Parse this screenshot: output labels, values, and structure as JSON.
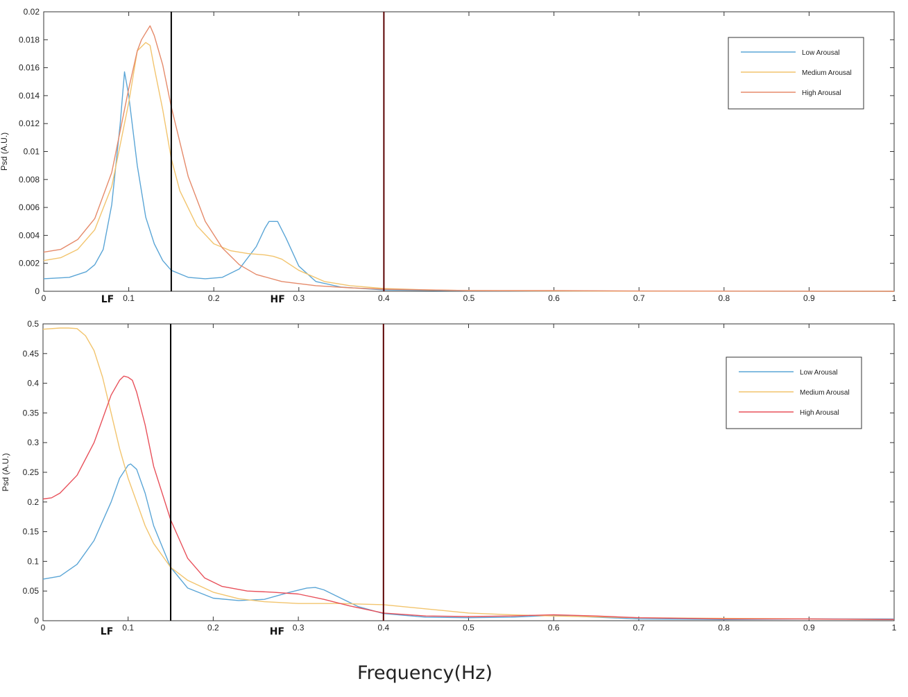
{
  "figure": {
    "xlabel": "Frequency(Hz)",
    "band_labels": {
      "lf": "LF",
      "hf": "HF"
    }
  },
  "colors": {
    "low": "#5aa5d6",
    "medium": "#f2c46d",
    "high_top": "#e58a6a",
    "high_bottom": "#e8505a",
    "lf_line": "#000000",
    "hf_line": "#5a0000"
  },
  "chart_data": [
    {
      "type": "line",
      "ylabel": "Psd (A.U.)",
      "xlim": [
        0,
        1
      ],
      "ylim": [
        0,
        0.02
      ],
      "xticks": [
        "0",
        "0.1",
        "0.2",
        "0.3",
        "0.4",
        "0.5",
        "0.6",
        "0.7",
        "0.8",
        "0.9",
        "1"
      ],
      "yticks": [
        "0",
        "0.002",
        "0.004",
        "0.006",
        "0.008",
        "0.01",
        "0.012",
        "0.014",
        "0.016",
        "0.018",
        "0.02"
      ],
      "vlines": [
        0.15,
        0.4
      ],
      "legend_position": "top-right",
      "series": [
        {
          "name": "Low Arousal",
          "color_key": "low",
          "x": [
            0,
            0.03,
            0.05,
            0.06,
            0.07,
            0.08,
            0.09,
            0.095,
            0.1,
            0.11,
            0.12,
            0.13,
            0.14,
            0.15,
            0.17,
            0.19,
            0.21,
            0.23,
            0.25,
            0.26,
            0.265,
            0.275,
            0.285,
            0.3,
            0.32,
            0.35,
            0.4,
            0.5,
            0.6,
            0.7,
            1.0
          ],
          "y": [
            0.0009,
            0.001,
            0.0014,
            0.0019,
            0.003,
            0.0062,
            0.012,
            0.0157,
            0.014,
            0.009,
            0.0053,
            0.0034,
            0.0022,
            0.0015,
            0.001,
            0.0009,
            0.001,
            0.0016,
            0.0032,
            0.0045,
            0.005,
            0.005,
            0.0038,
            0.0018,
            0.0007,
            0.0003,
            0.0001,
            3e-05,
            2e-05,
            1e-05,
            0
          ]
        },
        {
          "name": "Medium Arousal",
          "color_key": "medium",
          "x": [
            0,
            0.02,
            0.04,
            0.06,
            0.08,
            0.1,
            0.11,
            0.12,
            0.125,
            0.13,
            0.14,
            0.15,
            0.16,
            0.18,
            0.2,
            0.22,
            0.24,
            0.26,
            0.27,
            0.28,
            0.3,
            0.33,
            0.36,
            0.4,
            0.45,
            0.5,
            0.6,
            0.7,
            1.0
          ],
          "y": [
            0.0022,
            0.0024,
            0.003,
            0.0044,
            0.0075,
            0.0135,
            0.0172,
            0.0178,
            0.0176,
            0.016,
            0.013,
            0.0095,
            0.0072,
            0.0047,
            0.0034,
            0.0029,
            0.0027,
            0.0026,
            0.0025,
            0.0023,
            0.0015,
            0.0007,
            0.0004,
            0.0002,
            0.0001,
            5e-05,
            2e-05,
            1e-05,
            0
          ]
        },
        {
          "name": "High Arousal",
          "color_key": "high_top",
          "x": [
            0,
            0.02,
            0.04,
            0.06,
            0.08,
            0.1,
            0.11,
            0.115,
            0.12,
            0.125,
            0.13,
            0.14,
            0.15,
            0.17,
            0.19,
            0.21,
            0.23,
            0.25,
            0.28,
            0.32,
            0.36,
            0.4,
            0.45,
            0.5,
            0.6,
            0.7,
            1.0
          ],
          "y": [
            0.0028,
            0.003,
            0.0037,
            0.0052,
            0.0085,
            0.0145,
            0.0172,
            0.018,
            0.0185,
            0.019,
            0.0183,
            0.0162,
            0.0132,
            0.0082,
            0.005,
            0.0031,
            0.0019,
            0.0012,
            0.0007,
            0.0004,
            0.00025,
            0.00015,
            0.0001,
            5e-05,
            5e-05,
            2e-05,
            0
          ]
        }
      ],
      "legend": [
        "Low Arousal",
        "Medium Arousal",
        "High Arousal"
      ]
    },
    {
      "type": "line",
      "ylabel": "Psd (A.U.)",
      "xlim": [
        0,
        1
      ],
      "ylim": [
        0,
        0.5
      ],
      "xticks": [
        "0",
        "0.1",
        "0.2",
        "0.3",
        "0.4",
        "0.5",
        "0.6",
        "0.7",
        "0.8",
        "0.9",
        "1"
      ],
      "yticks": [
        "0",
        "0.05",
        "0.1",
        "0.15",
        "0.2",
        "0.25",
        "0.3",
        "0.35",
        "0.4",
        "0.45",
        "0.5"
      ],
      "vlines": [
        0.15,
        0.4
      ],
      "legend_position": "top-right",
      "series": [
        {
          "name": "Low Arousal",
          "color_key": "low",
          "x": [
            0,
            0.02,
            0.04,
            0.06,
            0.08,
            0.09,
            0.1,
            0.103,
            0.11,
            0.12,
            0.13,
            0.15,
            0.17,
            0.2,
            0.23,
            0.26,
            0.29,
            0.31,
            0.32,
            0.33,
            0.35,
            0.37,
            0.4,
            0.45,
            0.5,
            0.55,
            0.6,
            0.65,
            0.7,
            0.8,
            0.9,
            1.0
          ],
          "y": [
            0.07,
            0.075,
            0.095,
            0.135,
            0.2,
            0.24,
            0.262,
            0.264,
            0.255,
            0.215,
            0.16,
            0.09,
            0.055,
            0.038,
            0.034,
            0.036,
            0.048,
            0.055,
            0.056,
            0.052,
            0.038,
            0.024,
            0.012,
            0.006,
            0.005,
            0.006,
            0.009,
            0.006,
            0.003,
            0.002,
            0.003,
            0.003
          ]
        },
        {
          "name": "Medium Arousal",
          "color_key": "medium",
          "x": [
            0,
            0.02,
            0.03,
            0.04,
            0.05,
            0.06,
            0.07,
            0.08,
            0.09,
            0.1,
            0.11,
            0.12,
            0.13,
            0.15,
            0.17,
            0.2,
            0.23,
            0.26,
            0.3,
            0.35,
            0.4,
            0.45,
            0.5,
            0.55,
            0.6,
            0.7,
            0.8,
            0.9,
            1.0
          ],
          "y": [
            0.491,
            0.493,
            0.493,
            0.492,
            0.48,
            0.455,
            0.41,
            0.35,
            0.29,
            0.24,
            0.2,
            0.16,
            0.13,
            0.09,
            0.068,
            0.048,
            0.037,
            0.032,
            0.029,
            0.029,
            0.027,
            0.02,
            0.013,
            0.01,
            0.008,
            0.005,
            0.004,
            0.003,
            0.002
          ]
        },
        {
          "name": "High Arousal",
          "color_key": "high_bottom",
          "x": [
            0,
            0.01,
            0.02,
            0.04,
            0.06,
            0.07,
            0.08,
            0.09,
            0.095,
            0.1,
            0.105,
            0.11,
            0.12,
            0.13,
            0.15,
            0.17,
            0.19,
            0.21,
            0.24,
            0.27,
            0.3,
            0.33,
            0.36,
            0.4,
            0.45,
            0.5,
            0.55,
            0.6,
            0.65,
            0.7,
            0.8,
            0.9,
            1.0
          ],
          "y": [
            0.205,
            0.207,
            0.215,
            0.245,
            0.3,
            0.34,
            0.38,
            0.405,
            0.412,
            0.41,
            0.405,
            0.385,
            0.33,
            0.26,
            0.17,
            0.105,
            0.072,
            0.058,
            0.05,
            0.048,
            0.045,
            0.036,
            0.025,
            0.013,
            0.008,
            0.007,
            0.008,
            0.01,
            0.008,
            0.005,
            0.003,
            0.003,
            0.002
          ]
        }
      ],
      "legend": [
        "Low Arousal",
        "Medium Arousal",
        "High Arousal"
      ]
    }
  ]
}
